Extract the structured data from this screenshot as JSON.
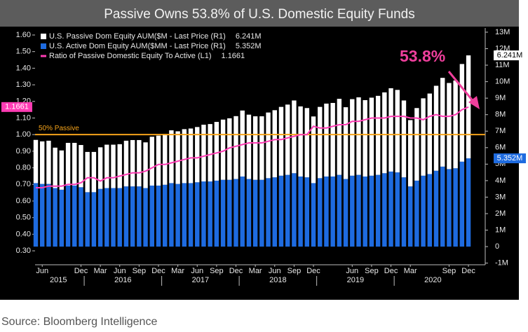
{
  "chart_data": {
    "type": "bar-line",
    "title": "Passive Owns 53.8% of U.S. Domestic Equity Funds",
    "source": "Source: Bloomberg Intelligence",
    "categories": [
      null,
      "Jun",
      null,
      null,
      null,
      null,
      null,
      "Dec",
      null,
      null,
      "Mar",
      null,
      null,
      "Jun",
      null,
      null,
      "Sep",
      null,
      null,
      "Dec",
      null,
      null,
      "Mar",
      null,
      null,
      "Jun",
      null,
      null,
      "Sep",
      null,
      null,
      "Dec",
      null,
      null,
      "Mar",
      null,
      null,
      "Jun",
      null,
      null,
      "Sep",
      null,
      null,
      "Dec",
      null,
      null,
      null,
      null,
      null,
      "Jun",
      null,
      null,
      "Sep",
      null,
      null,
      "Dec",
      null,
      null,
      "Mar",
      null,
      null,
      null,
      null,
      null,
      "Sep",
      null,
      null,
      "Dec"
    ],
    "year_labels": [
      "2015",
      "2016",
      "2017",
      "2018",
      "2019",
      "2020"
    ],
    "series": [
      {
        "name": "U.S. Active Dom Equity AUM($MM - Last Price (R1)",
        "color": "#1e6be0",
        "axis": "y2",
        "kind": "bar",
        "values": [
          3.85,
          3.8,
          3.8,
          3.55,
          3.45,
          3.7,
          3.7,
          3.6,
          3.3,
          3.3,
          3.5,
          3.55,
          3.55,
          3.55,
          3.65,
          3.65,
          3.65,
          3.55,
          3.7,
          3.7,
          3.75,
          3.85,
          3.8,
          3.85,
          3.85,
          3.9,
          3.95,
          3.95,
          4.0,
          4.05,
          4.05,
          4.1,
          4.25,
          4.1,
          4.05,
          4.05,
          4.15,
          4.2,
          4.3,
          4.35,
          4.45,
          4.25,
          4.2,
          3.85,
          4.15,
          4.25,
          4.25,
          4.35,
          4.1,
          4.3,
          4.35,
          4.25,
          4.3,
          4.35,
          4.45,
          4.55,
          4.5,
          4.2,
          3.65,
          4.0,
          4.3,
          4.4,
          4.6,
          4.85,
          4.7,
          4.75,
          5.15,
          5.352
        ],
        "value_labels": [
          null,
          null,
          null,
          null,
          null,
          null,
          null,
          null,
          null,
          null,
          null,
          null,
          null,
          null,
          null,
          null,
          null,
          null,
          null,
          null,
          null,
          null,
          null,
          null,
          null,
          null,
          null,
          null,
          null,
          null,
          null,
          null,
          null,
          null,
          null,
          null,
          null,
          null,
          null,
          null,
          null,
          null,
          null,
          null,
          null,
          null,
          null,
          null,
          null,
          null,
          null,
          null,
          null,
          null,
          null,
          null,
          null,
          null,
          null,
          null,
          null,
          null,
          null,
          null,
          null,
          null,
          null,
          "5.352M"
        ]
      },
      {
        "name": "U.S. Passive Dom Equity AUM($M - Last Price (R1)",
        "color": "#ffffff",
        "axis": "y2",
        "kind": "bar",
        "values": [
          2.62,
          2.58,
          2.62,
          2.45,
          2.38,
          2.59,
          2.59,
          2.56,
          2.44,
          2.44,
          2.52,
          2.63,
          2.63,
          2.66,
          2.77,
          2.81,
          2.81,
          2.77,
          2.96,
          3.03,
          3.08,
          3.2,
          3.19,
          3.27,
          3.31,
          3.35,
          3.44,
          3.48,
          3.56,
          3.65,
          3.73,
          3.81,
          4.0,
          3.9,
          3.85,
          3.85,
          3.98,
          4.07,
          4.17,
          4.26,
          4.41,
          4.25,
          4.2,
          4.04,
          4.32,
          4.42,
          4.46,
          4.61,
          4.35,
          4.64,
          4.7,
          4.63,
          4.73,
          4.79,
          4.9,
          5.05,
          5.0,
          4.66,
          4.02,
          4.4,
          4.69,
          4.88,
          5.15,
          5.38,
          5.22,
          5.32,
          5.92,
          6.241
        ],
        "value_labels": [
          null,
          null,
          null,
          null,
          null,
          null,
          null,
          null,
          null,
          null,
          null,
          null,
          null,
          null,
          null,
          null,
          null,
          null,
          null,
          null,
          null,
          null,
          null,
          null,
          null,
          null,
          null,
          null,
          null,
          null,
          null,
          null,
          null,
          null,
          null,
          null,
          null,
          null,
          null,
          null,
          null,
          null,
          null,
          null,
          null,
          null,
          null,
          null,
          null,
          null,
          null,
          null,
          null,
          null,
          null,
          null,
          null,
          null,
          null,
          null,
          null,
          null,
          null,
          null,
          null,
          null,
          null,
          "6.241M"
        ]
      },
      {
        "name": "Ratio of Passive Domestic Equity To Active (L1)",
        "color": "#ff3cb4",
        "axis": "y",
        "kind": "line",
        "values": [
          0.68,
          0.68,
          0.69,
          0.69,
          0.69,
          0.7,
          0.7,
          0.71,
          0.74,
          0.74,
          0.72,
          0.74,
          0.74,
          0.75,
          0.76,
          0.77,
          0.77,
          0.78,
          0.8,
          0.82,
          0.82,
          0.83,
          0.84,
          0.85,
          0.86,
          0.86,
          0.87,
          0.88,
          0.89,
          0.9,
          0.92,
          0.93,
          0.94,
          0.95,
          0.95,
          0.95,
          0.96,
          0.97,
          0.97,
          0.98,
          0.99,
          1.0,
          1.0,
          1.05,
          1.04,
          1.04,
          1.05,
          1.06,
          1.06,
          1.08,
          1.08,
          1.09,
          1.1,
          1.1,
          1.1,
          1.11,
          1.11,
          1.11,
          1.1,
          1.1,
          1.09,
          1.11,
          1.12,
          1.11,
          1.11,
          1.12,
          1.15,
          1.1661
        ]
      }
    ],
    "legend_order": [
      1,
      0,
      2
    ],
    "ylim": [
      0.216,
      1.621
    ],
    "yticks": [
      {
        "value": 0.3,
        "label": "0.30"
      },
      {
        "value": 0.4,
        "label": "0.40"
      },
      {
        "value": 0.5,
        "label": "0.50"
      },
      {
        "value": 0.6,
        "label": "0.60"
      },
      {
        "value": 0.7,
        "label": "0.70"
      },
      {
        "value": 0.8,
        "label": "0.80"
      },
      {
        "value": 0.9,
        "label": "0.90"
      },
      {
        "value": 1.0,
        "label": "1.00"
      },
      {
        "value": 1.1,
        "label": "1.10"
      },
      {
        "value": 1.2,
        "label": "1.20"
      },
      {
        "value": 1.3,
        "label": "1.30"
      },
      {
        "value": 1.4,
        "label": "1.40"
      },
      {
        "value": 1.5,
        "label": "1.50"
      },
      {
        "value": 1.6,
        "label": "1.60"
      }
    ],
    "y2lim": [
      -1.1,
      13.04
    ],
    "y2ticks": [
      {
        "value": -1,
        "label": "-1M"
      },
      0,
      {
        "value": 1,
        "label": "1M"
      },
      {
        "value": 2,
        "label": "2M"
      },
      {
        "value": 3,
        "label": "3M"
      },
      {
        "value": 4,
        "label": "4M"
      },
      {
        "value": 5,
        "label": "5M"
      },
      {
        "value": 6,
        "label": "6M"
      },
      {
        "value": 7,
        "label": "7M"
      },
      {
        "value": 8,
        "label": "8M"
      },
      {
        "value": 9,
        "label": "9M"
      },
      {
        "value": 10,
        "label": "10M"
      },
      {
        "value": 11,
        "label": "11M"
      },
      {
        "value": 12,
        "label": "12M"
      },
      {
        "value": 13,
        "label": "13M"
      }
    ],
    "hline": {
      "value": 1.0,
      "label": "50% Passive",
      "color": "#f5a31a"
    },
    "annotation": {
      "text": "53.8%",
      "color": "#ef3f9c"
    }
  }
}
